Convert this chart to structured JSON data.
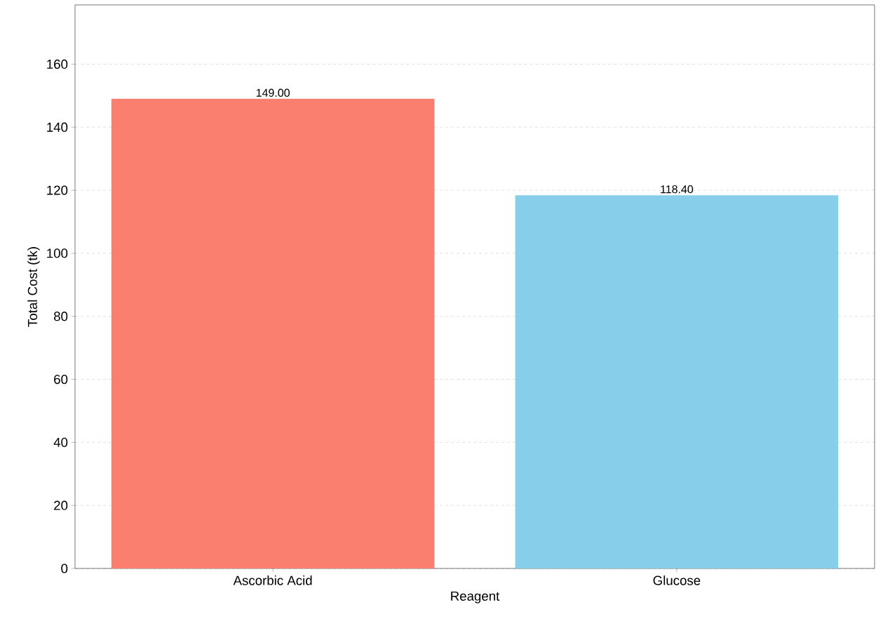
{
  "chart_data": {
    "type": "bar",
    "xlabel": "Reagent",
    "ylabel": "Total Cost (tk)",
    "categories": [
      "Ascorbic Acid",
      "Glucose"
    ],
    "values": [
      149.0,
      118.4
    ],
    "colors": [
      "#fa7f6f",
      "#87ceeb"
    ],
    "value_labels": [
      "149.00",
      "118.40"
    ],
    "ylim": [
      0,
      178.8
    ],
    "yticks": [
      0,
      20,
      40,
      60,
      80,
      100,
      120,
      140,
      160
    ],
    "grid": "y"
  }
}
